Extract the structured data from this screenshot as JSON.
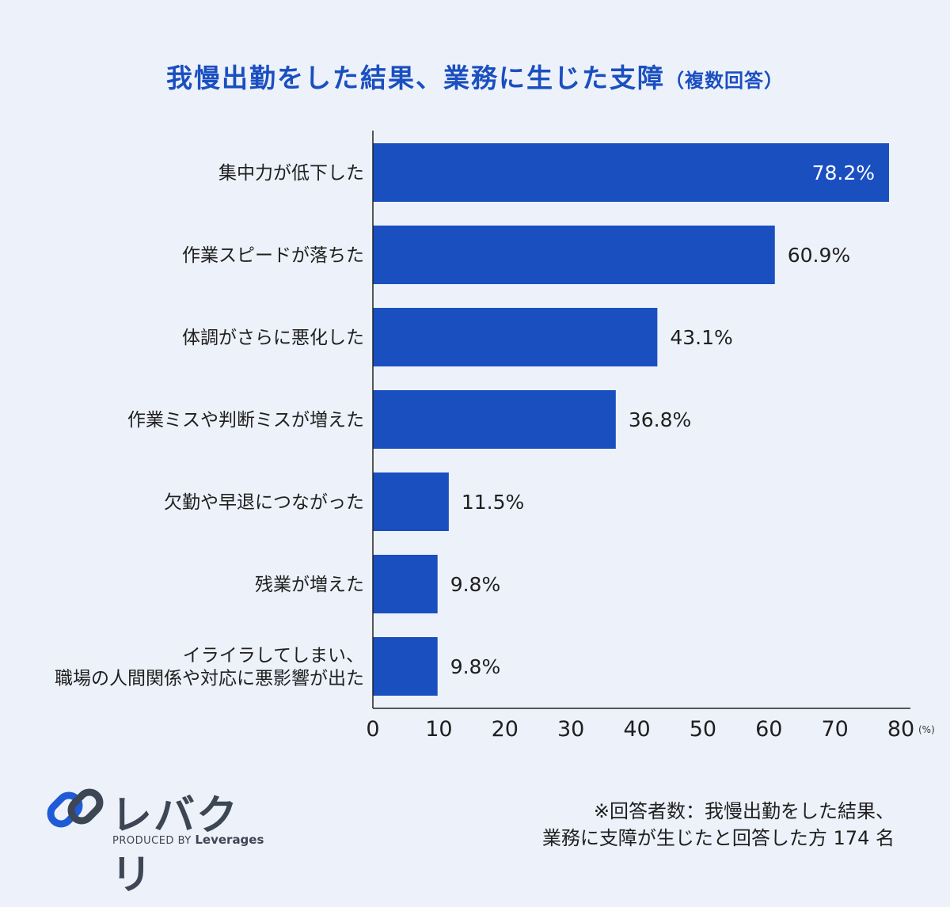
{
  "title": {
    "main": "我慢出勤をした結果、業務に生じた支障",
    "sub": "（複数回答）"
  },
  "chart_data": {
    "type": "bar",
    "orientation": "horizontal",
    "categories": [
      [
        "集中力が低下した"
      ],
      [
        "作業スピードが落ちた"
      ],
      [
        "体調がさらに悪化した"
      ],
      [
        "作業ミスや判断ミスが増えた"
      ],
      [
        "欠勤や早退につながった"
      ],
      [
        "残業が増えた"
      ],
      [
        "イライラしてしまい、",
        "職場の人間関係や対応に悪影響が出た"
      ]
    ],
    "values": [
      78.2,
      60.9,
      43.1,
      36.8,
      11.5,
      9.8,
      9.8
    ],
    "value_labels": [
      "78.2%",
      "60.9%",
      "43.1%",
      "36.8%",
      "11.5%",
      "9.8%",
      "9.8%"
    ],
    "xlim": [
      0,
      80
    ],
    "xticks": [
      "0",
      "10",
      "20",
      "30",
      "40",
      "50",
      "60",
      "70",
      "80"
    ],
    "unit": "(%)",
    "bar_color": "#1a4fc0",
    "grid": false
  },
  "logo": {
    "name": "レバクリ",
    "produced_by": "PRODUCED BY",
    "company": "Leverages"
  },
  "note": {
    "line1": "※回答者数：我慢出勤をした結果、",
    "line2": "業務に支障が生じたと回答した方 174 名"
  },
  "colors": {
    "accent": "#1a4fc0",
    "background": "#edf1f9",
    "logo_blue": "#1f5bd6",
    "logo_gray": "#3d4654"
  }
}
